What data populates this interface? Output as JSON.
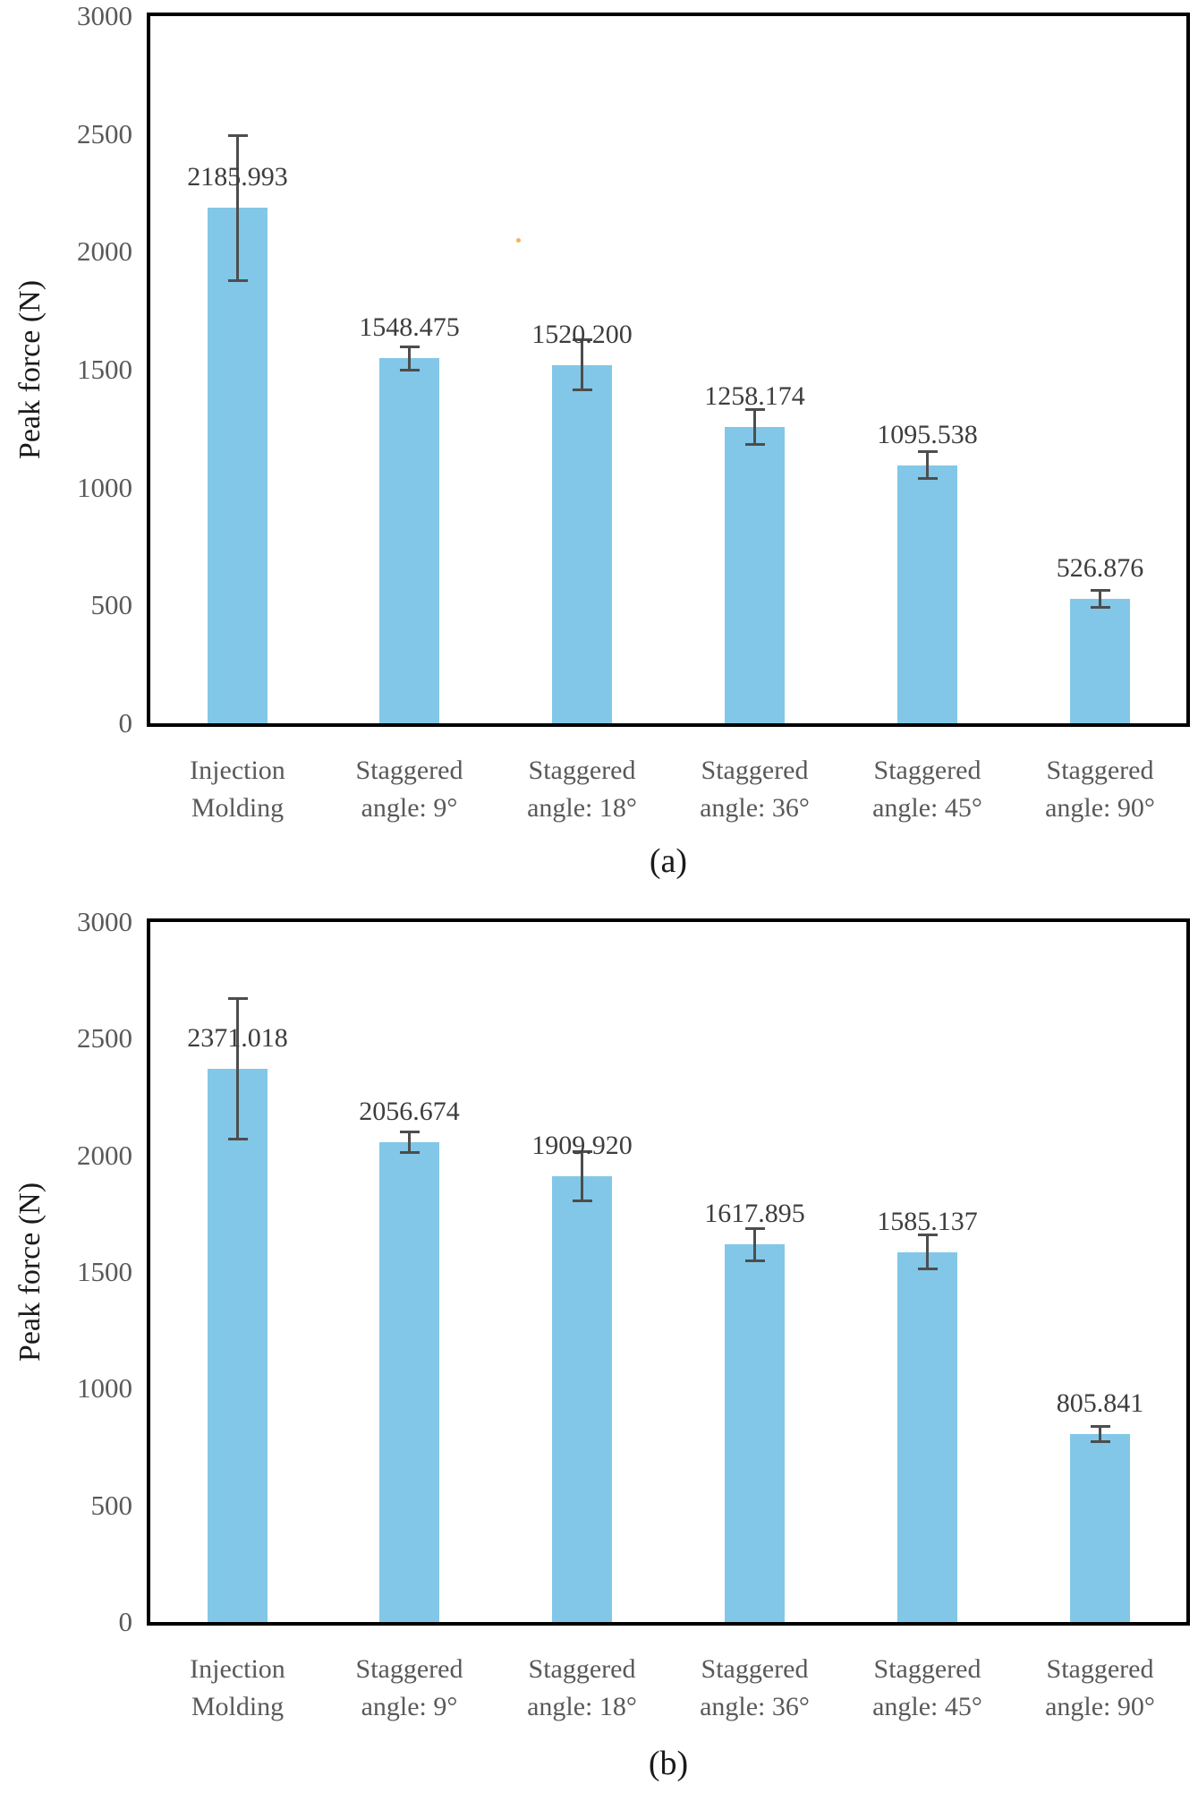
{
  "figure": {
    "bar_color": "#82c7e7",
    "error_color": "#4d4d4d",
    "frame_color": "#000000",
    "tick_color": "#595959",
    "value_label_color": "#3d3d3d",
    "artifact_dot_color": "#f0a83a"
  },
  "chart_data": [
    {
      "id": "a",
      "type": "bar",
      "caption": "(a)",
      "ylabel": "Peak force (N)",
      "ylim": [
        0,
        3000
      ],
      "yticks": [
        3000,
        2500,
        2000,
        1500,
        1000,
        500,
        0
      ],
      "grid": false,
      "legend": null,
      "categories": [
        [
          "Injection",
          "Molding"
        ],
        [
          "Staggered",
          "angle: 9°"
        ],
        [
          "Staggered",
          "angle: 18°"
        ],
        [
          "Staggered",
          "angle: 36°"
        ],
        [
          "Staggered",
          "angle: 45°"
        ],
        [
          "Staggered",
          "angle: 90°"
        ]
      ],
      "values": [
        2185.993,
        1548.475,
        1520.2,
        1258.174,
        1095.538,
        526.876
      ],
      "value_labels": [
        "2185.993",
        "1548.475",
        "1520.200",
        "1258.174",
        "1095.538",
        "526.876"
      ],
      "errors": [
        312,
        55,
        112,
        80,
        62,
        42
      ]
    },
    {
      "id": "b",
      "type": "bar",
      "caption": "(b)",
      "ylabel": "Peak force (N)",
      "ylim": [
        0,
        3000
      ],
      "yticks": [
        3000,
        2500,
        2000,
        1500,
        1000,
        500,
        0
      ],
      "grid": false,
      "legend": null,
      "categories": [
        [
          "Injection",
          "Molding"
        ],
        [
          "Staggered",
          "angle: 9°"
        ],
        [
          "Staggered",
          "angle: 18°"
        ],
        [
          "Staggered",
          "angle: 36°"
        ],
        [
          "Staggered",
          "angle: 45°"
        ],
        [
          "Staggered",
          "angle: 90°"
        ]
      ],
      "values": [
        2371.018,
        2056.674,
        1909.92,
        1617.895,
        1585.137,
        805.841
      ],
      "value_labels": [
        "2371.018",
        "2056.674",
        "1909.920",
        "1617.895",
        "1585.137",
        "805.841"
      ],
      "errors": [
        308,
        50,
        112,
        75,
        78,
        40
      ]
    }
  ]
}
